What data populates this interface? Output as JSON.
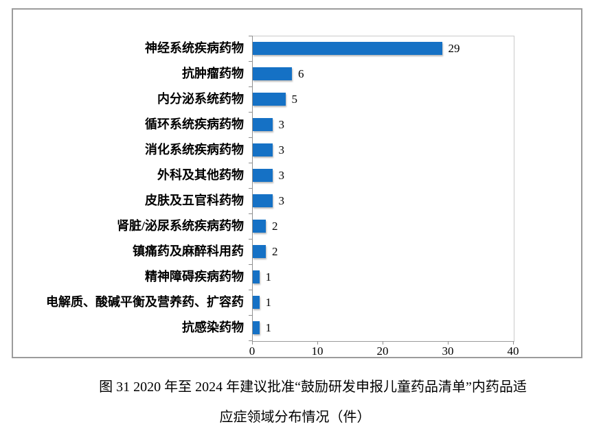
{
  "chart_data": {
    "type": "bar",
    "orientation": "horizontal",
    "title": "",
    "xlabel": "",
    "ylabel": "",
    "categories": [
      "神经系统疾病药物",
      "抗肿瘤药物",
      "内分泌系统药物",
      "循环系统疾病药物",
      "消化系统疾病药物",
      "外科及其他药物",
      "皮肤及五官科药物",
      "肾脏/泌尿系统疾病药物",
      "镇痛药及麻醉科用药",
      "精神障碍疾病药物",
      "电解质、酸碱平衡及营养药、扩容药",
      "抗感染药物"
    ],
    "values": [
      29,
      6,
      5,
      3,
      3,
      3,
      3,
      2,
      2,
      1,
      1,
      1
    ],
    "data_labels": [
      "29",
      "6",
      "5",
      "3",
      "3",
      "3",
      "3",
      "2",
      "2",
      "1",
      "1",
      "1"
    ],
    "x_ticks": [
      "0",
      "10",
      "20",
      "30",
      "40"
    ],
    "xlim": [
      0,
      40
    ],
    "grid": false,
    "legend": "none",
    "bar_color": "#1571C5"
  },
  "caption": {
    "line1": "图 31  2020 年至 2024 年建议批准“鼓励研发申报儿童药品清单”内药品适",
    "line2": "应症领域分布情况（件）"
  }
}
